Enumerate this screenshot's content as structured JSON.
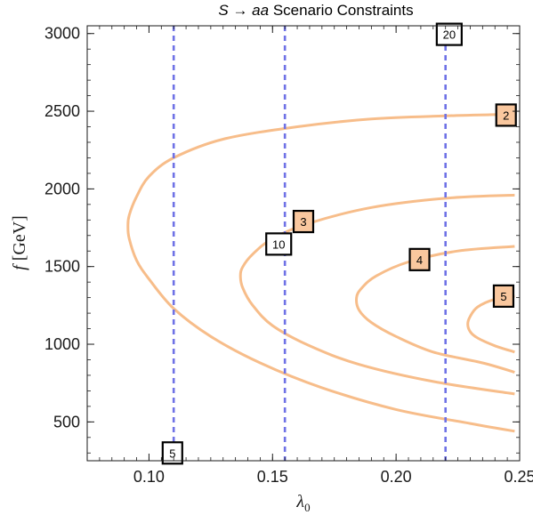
{
  "chart_data": {
    "type": "line",
    "title_prefix": "S",
    "title_arrow": " → ",
    "title_italic": "aa",
    "title_suffix": " Scenario Constraints",
    "xlabel": "λ",
    "xlabel_sub": "0",
    "ylabel_italic": "f",
    "ylabel_unit": " [GeV]",
    "xlim": [
      0.075,
      0.25
    ],
    "ylim": [
      250,
      3050
    ],
    "x_ticks": [
      0.1,
      0.15,
      0.2,
      0.25
    ],
    "x_tick_labels": [
      "0.10",
      "0.15",
      "0.20",
      "0.25"
    ],
    "y_ticks": [
      500,
      1000,
      1500,
      2000,
      2500,
      3000
    ],
    "y_tick_labels": [
      "500",
      "1000",
      "1500",
      "2000",
      "2500",
      "3000"
    ],
    "colors": {
      "curve": "#f7bd8a",
      "dashed": "#6f72e6",
      "filled_box": "#f9c79e",
      "open_box": "#ffffff",
      "frame": "#1a1a1a"
    },
    "series": [
      {
        "label": "2",
        "x": [
          0.248,
          0.22,
          0.19,
          0.16,
          0.13,
          0.11,
          0.1,
          0.095,
          0.092,
          0.0915,
          0.092,
          0.095,
          0.1,
          0.11,
          0.125,
          0.145,
          0.17,
          0.2,
          0.23,
          0.248
        ],
        "y": [
          2480,
          2470,
          2450,
          2400,
          2320,
          2200,
          2080,
          1950,
          1830,
          1760,
          1680,
          1540,
          1420,
          1230,
          1050,
          880,
          720,
          580,
          490,
          440
        ]
      },
      {
        "label": "3",
        "x": [
          0.248,
          0.22,
          0.19,
          0.165,
          0.15,
          0.142,
          0.138,
          0.137,
          0.138,
          0.142,
          0.15,
          0.165,
          0.185,
          0.215,
          0.248
        ],
        "y": [
          1960,
          1940,
          1880,
          1780,
          1680,
          1580,
          1500,
          1440,
          1360,
          1250,
          1120,
          990,
          870,
          760,
          680
        ]
      },
      {
        "label": "4",
        "x": [
          0.248,
          0.225,
          0.205,
          0.192,
          0.186,
          0.184,
          0.185,
          0.19,
          0.2,
          0.215,
          0.235,
          0.248
        ],
        "y": [
          1630,
          1600,
          1530,
          1440,
          1360,
          1300,
          1220,
          1140,
          1050,
          950,
          880,
          820
        ]
      },
      {
        "label": "5",
        "x": [
          0.248,
          0.24,
          0.233,
          0.23,
          0.229,
          0.23,
          0.233,
          0.24,
          0.248
        ],
        "y": [
          1310,
          1290,
          1240,
          1180,
          1130,
          1080,
          1040,
          990,
          950
        ]
      }
    ],
    "dashed_x": [
      0.11,
      0.155,
      0.22
    ],
    "contour_labels": [
      {
        "text": "2",
        "x": 0.2445,
        "y": 2475,
        "filled": true
      },
      {
        "text": "3",
        "x": 0.1625,
        "y": 1790,
        "filled": true
      },
      {
        "text": "4",
        "x": 0.2095,
        "y": 1545,
        "filled": true
      },
      {
        "text": "5",
        "x": 0.2435,
        "y": 1310,
        "filled": true
      }
    ],
    "vline_labels": [
      {
        "text": "20",
        "x": 0.2215,
        "y": 2995,
        "filled": false
      },
      {
        "text": "10",
        "x": 0.1525,
        "y": 1645,
        "filled": false
      },
      {
        "text": "5",
        "x": 0.1095,
        "y": 300,
        "filled": false
      }
    ]
  }
}
